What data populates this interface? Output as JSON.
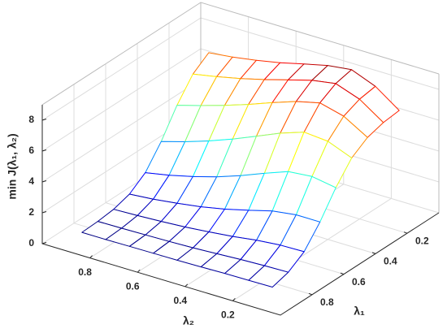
{
  "chart_data": {
    "type": "surface",
    "xlabel": "λ₁",
    "ylabel": "λ₂",
    "zlabel": "min J(λ₁, λ₂)",
    "x": [
      0.1,
      0.2,
      0.3,
      0.4,
      0.5,
      0.6,
      0.7,
      0.8,
      0.9
    ],
    "y": [
      0.1,
      0.2,
      0.3,
      0.4,
      0.5,
      0.6,
      0.7,
      0.8,
      0.9
    ],
    "z": [
      [
        6.83,
        7.93,
        8.55,
        8.36,
        7.99,
        7.61,
        7.3,
        7.05,
        6.87
      ],
      [
        6.71,
        7.76,
        8.31,
        8.06,
        7.62,
        7.18,
        6.78,
        6.44,
        6.14
      ],
      [
        6.41,
        7.32,
        7.72,
        7.35,
        6.81,
        6.23,
        5.71,
        5.23,
        4.79
      ],
      [
        5.74,
        6.36,
        6.49,
        5.96,
        5.3,
        4.65,
        4.07,
        3.55,
        3.1
      ],
      [
        4.48,
        4.74,
        4.6,
        4.02,
        3.41,
        2.87,
        2.42,
        2.05,
        1.75
      ],
      [
        2.92,
        2.92,
        2.71,
        2.29,
        1.9,
        1.59,
        1.35,
        1.16,
        1.02
      ],
      [
        1.66,
        1.62,
        1.48,
        1.26,
        1.09,
        0.94,
        0.84,
        0.76,
        0.7
      ],
      [
        0.99,
        0.95,
        0.89,
        0.8,
        0.72,
        0.67,
        0.63,
        0.6,
        0.58
      ],
      [
        0.69,
        0.67,
        0.65,
        0.61,
        0.58,
        0.57,
        0.55,
        0.53,
        0.53
      ]
    ],
    "xlim": [
      0,
      1
    ],
    "ylim": [
      0,
      1
    ],
    "zlim": [
      0,
      9
    ],
    "xticks": [
      0.2,
      0.4,
      0.6,
      0.8
    ],
    "yticks": [
      0.2,
      0.4,
      0.6,
      0.8
    ],
    "zticks": [
      0,
      2,
      4,
      6,
      8
    ],
    "grid": true,
    "colormap": "jet",
    "face_color": "#ffffff"
  }
}
